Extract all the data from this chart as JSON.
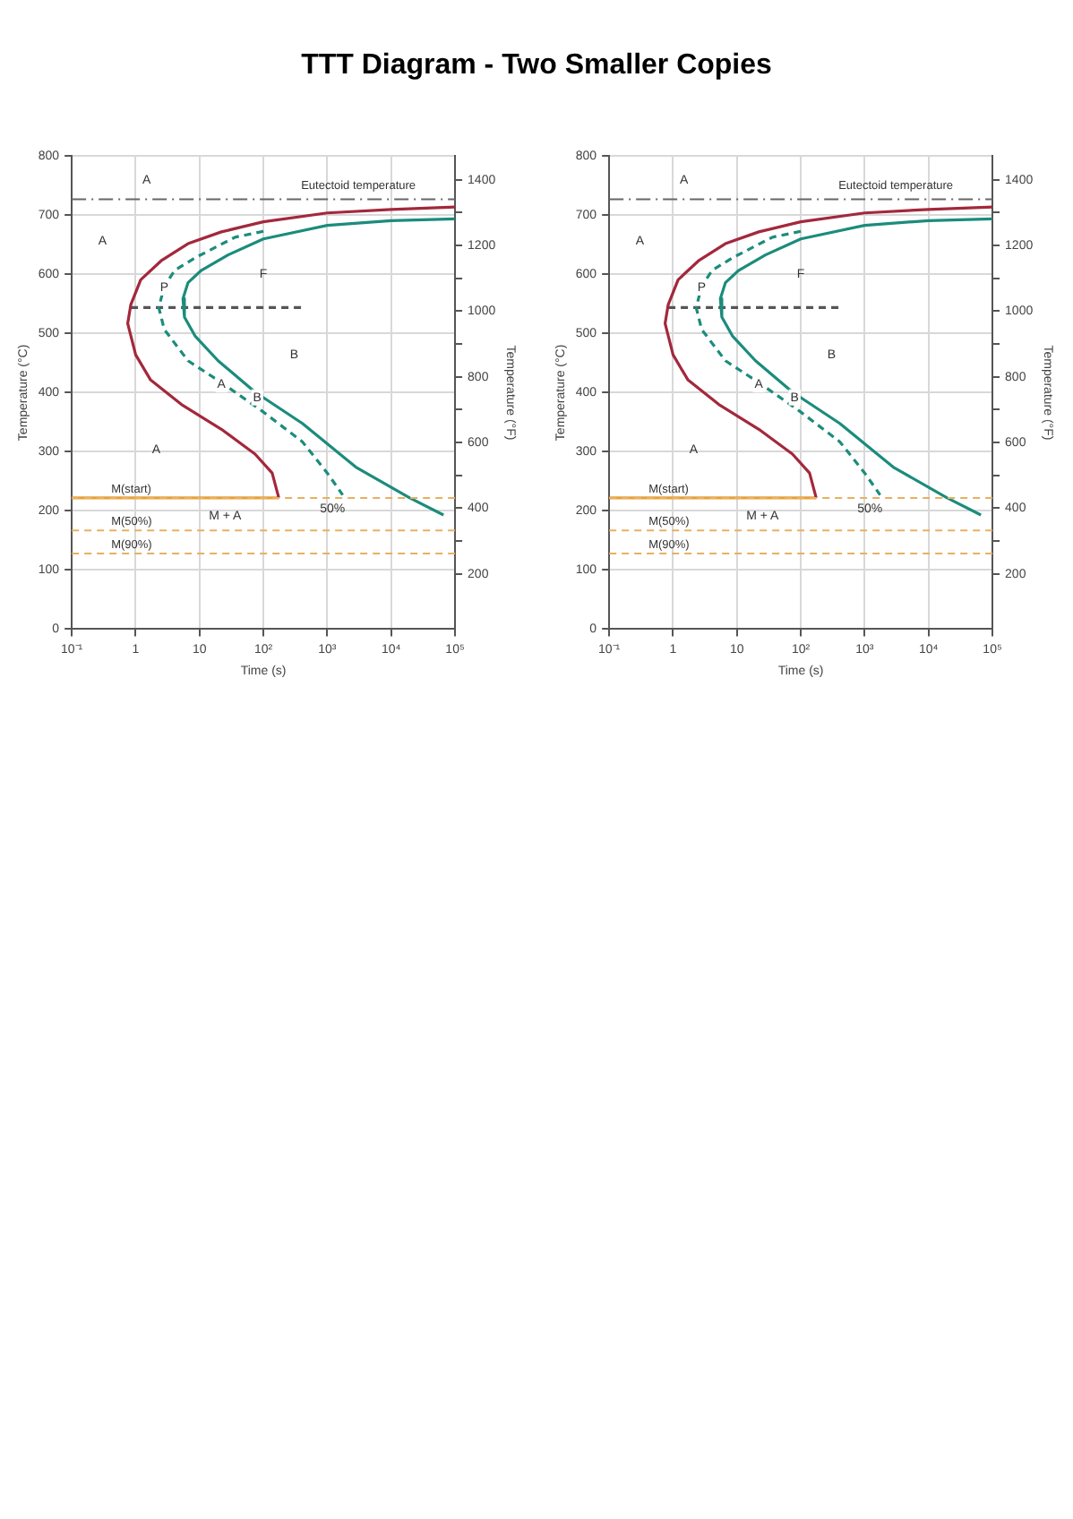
{
  "chart_data": [
    {
      "type": "line",
      "title": "TTT Diagram - Two Smaller Copies",
      "xlabel": "Time (s)",
      "ylabel": "Temperature (°C)",
      "y2label": "Temperature (°F)",
      "log": "x",
      "grid": true,
      "legend": false,
      "marker": "none",
      "xlim": [
        0.1,
        100000
      ],
      "xticks": [
        {
          "value": 0.1,
          "label": "10⁻¹"
        },
        {
          "value": 1,
          "label": "1"
        },
        {
          "value": 10,
          "label": "10"
        },
        {
          "value": 100,
          "label": "10²"
        },
        {
          "value": 1000,
          "label": "10³"
        },
        {
          "value": 10000,
          "label": "10⁴"
        },
        {
          "value": 100000,
          "label": "10⁵"
        }
      ],
      "ylim": [
        0,
        800
      ],
      "yticks": [
        0,
        100,
        200,
        300,
        400,
        500,
        600,
        700,
        800
      ],
      "y2lim": [
        32,
        1472
      ],
      "y2ticks": [
        {
          "value": 200,
          "label": "200"
        },
        {
          "value": 300,
          "label": null
        },
        {
          "value": 400,
          "label": "400"
        },
        {
          "value": 500,
          "label": null
        },
        {
          "value": 600,
          "label": "600"
        },
        {
          "value": 700,
          "label": null
        },
        {
          "value": 800,
          "label": "800"
        },
        {
          "value": 900,
          "label": null
        },
        {
          "value": 1000,
          "label": "1000"
        },
        {
          "value": 1100,
          "label": null
        },
        {
          "value": 1200,
          "label": "1200"
        },
        {
          "value": 1300,
          "label": null
        },
        {
          "value": 1400,
          "label": "1400"
        }
      ],
      "series": [
        {
          "color": "#a3283c",
          "line_style": "solid",
          "x": [
            100000,
            10000,
            1000,
            100,
            22,
            6.6,
            2.5,
            1.2,
            0.84,
            0.75,
            1.0,
            1.7,
            5.2,
            22,
            74,
            137,
            174
          ],
          "values": [
            714,
            710,
            704,
            689,
            672,
            652,
            623,
            591,
            549,
            517,
            464,
            422,
            380,
            338,
            296,
            264,
            222
          ]
        },
        {
          "color": "#1b8c7c",
          "line_style": "solid",
          "x": [
            100000,
            10000,
            1000,
            100,
            28,
            10.7,
            6.6,
            5.5,
            5.8,
            8.5,
            19.5,
            74,
            407,
            2800,
            19500,
            66000
          ],
          "values": [
            694,
            691,
            683,
            660,
            633,
            607,
            586,
            559,
            528,
            496,
            454,
            401,
            348,
            274,
            222,
            193
          ]
        },
        {
          "color": "#1b8c7c",
          "line_style": "dashed",
          "x": [
            100,
            36,
            8.5,
            4.1,
            2.8,
            2.3,
            2.8,
            6.6,
            22,
            95,
            407,
            1000,
            1740
          ],
          "values": [
            673,
            663,
            628,
            607,
            580,
            544,
            507,
            454,
            417,
            369,
            317,
            264,
            227
          ]
        },
        {
          "color": "#555555",
          "line_style": "dashed",
          "x": [
            0.84,
            390
          ],
          "values": [
            544,
            544
          ]
        },
        {
          "color": "#e8a03c",
          "line_style": "solid",
          "x": [
            0.1,
            174
          ],
          "values": [
            222,
            222
          ]
        }
      ],
      "ref_lines": [
        {
          "axis": "y",
          "value": 727,
          "label": "Eutectoid temperature",
          "color": "#666666",
          "line_style": "dashdot"
        },
        {
          "axis": "y",
          "value": 222,
          "label": "M(start)",
          "color": "#e8b060",
          "line_style": "dashed"
        },
        {
          "axis": "y",
          "value": 167,
          "label": "M(50%)",
          "color": "#e8b060",
          "line_style": "dashed"
        },
        {
          "axis": "y",
          "value": 128,
          "label": "M(90%)",
          "color": "#e8b060",
          "line_style": "dashed"
        }
      ],
      "annotations": [
        "A",
        "A",
        {
          "text": "P",
          "x": 2.8,
          "y": 578
        },
        "F",
        "B",
        {
          "text": "A",
          "x": 22,
          "y": 414
        },
        {
          "text": "B",
          "x": 80,
          "y": 392
        },
        "A",
        "M + A",
        "50%"
      ]
    },
    {
      "type": "line",
      "xlabel": "Time (s)",
      "ylabel": "Temperature (°C)",
      "y2label": "Temperature (°F)",
      "log": "x",
      "grid": true,
      "legend": false,
      "marker": "none",
      "xlim": [
        0.1,
        100000
      ],
      "xticks": [
        {
          "value": 0.1,
          "label": "10⁻¹"
        },
        {
          "value": 1,
          "label": "1"
        },
        {
          "value": 10,
          "label": "10"
        },
        {
          "value": 100,
          "label": "10²"
        },
        {
          "value": 1000,
          "label": "10³"
        },
        {
          "value": 10000,
          "label": "10⁴"
        },
        {
          "value": 100000,
          "label": "10⁵"
        }
      ],
      "ylim": [
        0,
        800
      ],
      "yticks": [
        0,
        100,
        200,
        300,
        400,
        500,
        600,
        700,
        800
      ],
      "y2lim": [
        32,
        1472
      ],
      "y2ticks": [
        {
          "value": 200,
          "label": "200"
        },
        {
          "value": 300,
          "label": null
        },
        {
          "value": 400,
          "label": "400"
        },
        {
          "value": 500,
          "label": null
        },
        {
          "value": 600,
          "label": "600"
        },
        {
          "value": 700,
          "label": null
        },
        {
          "value": 800,
          "label": "800"
        },
        {
          "value": 900,
          "label": null
        },
        {
          "value": 1000,
          "label": "1000"
        },
        {
          "value": 1100,
          "label": null
        },
        {
          "value": 1200,
          "label": "1200"
        },
        {
          "value": 1300,
          "label": null
        },
        {
          "value": 1400,
          "label": "1400"
        }
      ],
      "series": [
        {
          "color": "#a3283c",
          "line_style": "solid",
          "x": [
            100000,
            10000,
            1000,
            100,
            22,
            6.6,
            2.5,
            1.2,
            0.84,
            0.75,
            1.0,
            1.7,
            5.2,
            22,
            74,
            137,
            174
          ],
          "values": [
            714,
            710,
            704,
            689,
            672,
            652,
            623,
            591,
            549,
            517,
            464,
            422,
            380,
            338,
            296,
            264,
            222
          ]
        },
        {
          "color": "#1b8c7c",
          "line_style": "solid",
          "x": [
            100000,
            10000,
            1000,
            100,
            28,
            10.7,
            6.6,
            5.5,
            5.8,
            8.5,
            19.5,
            74,
            407,
            2800,
            19500,
            66000
          ],
          "values": [
            694,
            691,
            683,
            660,
            633,
            607,
            586,
            559,
            528,
            496,
            454,
            401,
            348,
            274,
            222,
            193
          ]
        },
        {
          "color": "#1b8c7c",
          "line_style": "dashed",
          "x": [
            100,
            36,
            8.5,
            4.1,
            2.8,
            2.3,
            2.8,
            6.6,
            22,
            95,
            407,
            1000,
            1740
          ],
          "values": [
            673,
            663,
            628,
            607,
            580,
            544,
            507,
            454,
            417,
            369,
            317,
            264,
            227
          ]
        },
        {
          "color": "#555555",
          "line_style": "dashed",
          "x": [
            0.84,
            390
          ],
          "values": [
            544,
            544
          ]
        },
        {
          "color": "#e8a03c",
          "line_style": "solid",
          "x": [
            0.1,
            174
          ],
          "values": [
            222,
            222
          ]
        }
      ],
      "ref_lines": [
        {
          "axis": "y",
          "value": 727,
          "label": "Eutectoid temperature",
          "color": "#666666",
          "line_style": "dashdot"
        },
        {
          "axis": "y",
          "value": 222,
          "label": "M(start)",
          "color": "#e8b060",
          "line_style": "dashed"
        },
        {
          "axis": "y",
          "value": 167,
          "label": "M(50%)",
          "color": "#e8b060",
          "line_style": "dashed"
        },
        {
          "axis": "y",
          "value": 128,
          "label": "M(90%)",
          "color": "#e8b060",
          "line_style": "dashed"
        }
      ],
      "annotations": [
        "A",
        "A",
        {
          "text": "P",
          "x": 2.8,
          "y": 578
        },
        "F",
        "B",
        {
          "text": "A",
          "x": 22,
          "y": 414
        },
        {
          "text": "B",
          "x": 80,
          "y": 392
        },
        "A",
        "M + A",
        "50%"
      ]
    }
  ]
}
